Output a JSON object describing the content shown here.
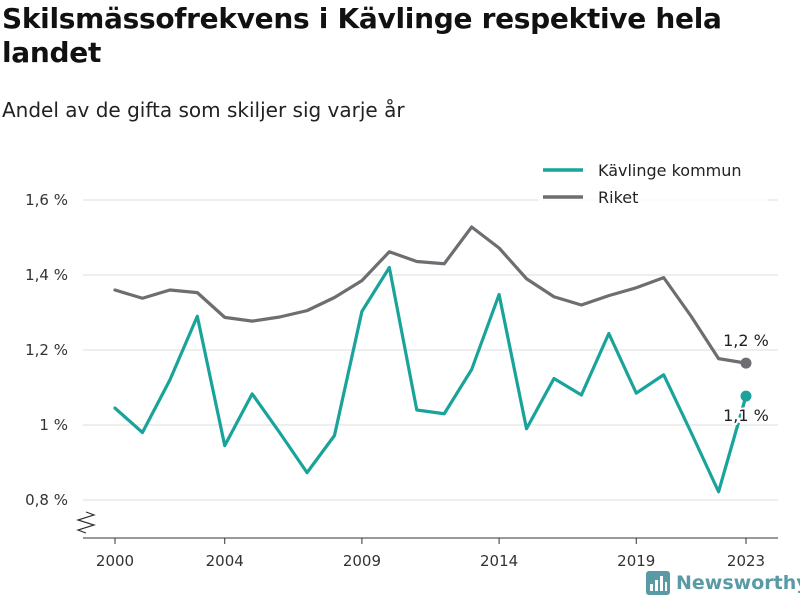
{
  "title": "Skilsmässofrekvens i Kävlinge respektive hela landet",
  "subtitle": "Andel av de gifta som skiljer sig varje år",
  "brand": "Newsworthy",
  "chart_data": {
    "type": "line",
    "x": [
      2000,
      2001,
      2002,
      2003,
      2004,
      2005,
      2006,
      2007,
      2008,
      2009,
      2010,
      2011,
      2012,
      2013,
      2014,
      2015,
      2016,
      2017,
      2018,
      2019,
      2020,
      2021,
      2022,
      2023
    ],
    "series": [
      {
        "name": "Kävlinge kommun",
        "color": "#1aa39a",
        "values": [
          1.045,
          0.98,
          1.12,
          1.29,
          0.945,
          1.083,
          0.98,
          0.873,
          0.972,
          1.303,
          1.42,
          1.04,
          1.03,
          1.148,
          1.348,
          0.99,
          1.124,
          1.08,
          1.244,
          1.085,
          1.134,
          0.98,
          0.822,
          1.077
        ],
        "end_label": "1,1 %"
      },
      {
        "name": "Riket",
        "color": "#6e6d71",
        "values": [
          1.36,
          1.338,
          1.36,
          1.353,
          1.287,
          1.277,
          1.288,
          1.305,
          1.34,
          1.385,
          1.462,
          1.436,
          1.43,
          1.528,
          1.472,
          1.39,
          1.342,
          1.32,
          1.345,
          1.366,
          1.393,
          1.29,
          1.177,
          1.165
        ],
        "end_label": "1,2 %"
      }
    ],
    "xticks": [
      2000,
      2004,
      2009,
      2014,
      2019,
      2023
    ],
    "xtick_labels": [
      "2000",
      "2004",
      "2009",
      "2014",
      "2019",
      "2023"
    ],
    "yticks": [
      0.8,
      1.0,
      1.2,
      1.4,
      1.6
    ],
    "ytick_labels": [
      "0,8 %",
      "1 %",
      "1,2 %",
      "1,4 %",
      "1,6 %"
    ],
    "ylim": [
      0.8,
      1.6
    ],
    "xlim": [
      2000,
      2023
    ],
    "grid": true,
    "axis_break": true,
    "legend_position": "top-right"
  }
}
